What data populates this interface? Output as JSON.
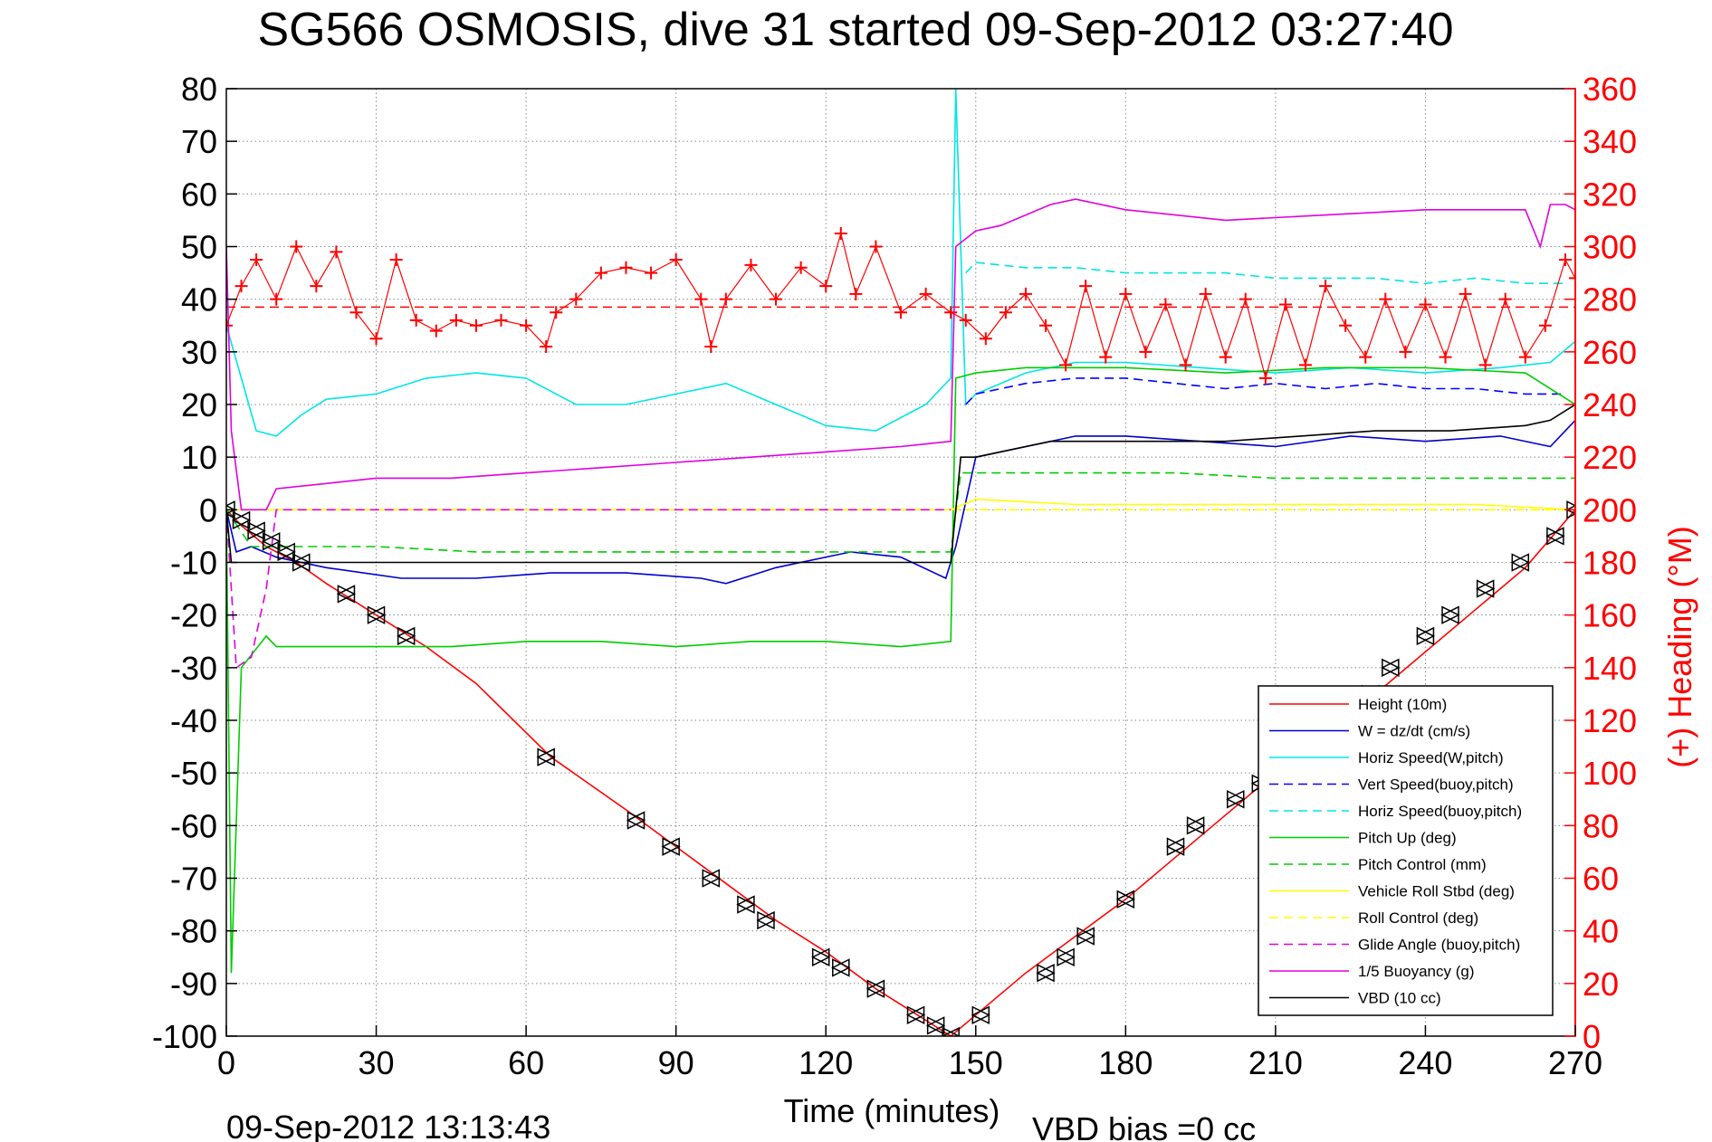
{
  "chart_data": {
    "type": "line",
    "title": "SG566 OSMOSIS, dive 31 started 09-Sep-2012 03:27:40",
    "xlabel": "Time (minutes)",
    "ylabel_right": "(+) Heading (°M)",
    "footer_left": "09-Sep-2012 13:13:43",
    "footer_right": "VBD bias =0 cc",
    "xlim": [
      0,
      270
    ],
    "ylim": [
      -100,
      80
    ],
    "y2lim": [
      0,
      360
    ],
    "grid": true,
    "legend_position": "lower-right",
    "x_ticks": [
      0,
      30,
      60,
      90,
      120,
      150,
      180,
      210,
      240,
      270
    ],
    "y_ticks": [
      80,
      70,
      60,
      50,
      40,
      30,
      20,
      10,
      0,
      -10,
      -20,
      -30,
      -40,
      -50,
      -60,
      -70,
      -80,
      -90,
      -100
    ],
    "y2_ticks": [
      360,
      340,
      320,
      300,
      280,
      260,
      240,
      220,
      200,
      180,
      160,
      140,
      120,
      100,
      80,
      60,
      40,
      20,
      0
    ],
    "colors": {
      "red": "#ff0000",
      "blue": "#0000cc",
      "cyan": "#00e5e5",
      "green": "#00cc00",
      "yellow": "#ffff00",
      "magenta": "#e000e0",
      "black": "#000000"
    },
    "series": [
      {
        "name": "Height (10m)",
        "color": "#ff0000",
        "style": "solid",
        "x": [
          0,
          3,
          8,
          14,
          20,
          30,
          40,
          50,
          65,
          80,
          90,
          100,
          110,
          120,
          130,
          140,
          145,
          150,
          160,
          170,
          180,
          190,
          200,
          210,
          220,
          230,
          240,
          250,
          260,
          270
        ],
        "y": [
          0,
          -3,
          -7,
          -10,
          -14,
          -20,
          -26,
          -33,
          -47,
          -57,
          -64,
          -71,
          -78,
          -84,
          -91,
          -97,
          -100,
          -96,
          -88,
          -81,
          -74,
          -66,
          -58,
          -50,
          -42,
          -35,
          -27,
          -19,
          -11,
          0
        ]
      },
      {
        "name": "W = dz/dt (cm/s)",
        "color": "#0000cc",
        "style": "solid",
        "x": [
          0,
          2,
          5,
          10,
          20,
          35,
          50,
          65,
          80,
          95,
          100,
          110,
          125,
          135,
          144,
          146,
          150,
          160,
          170,
          180,
          195,
          210,
          225,
          240,
          255,
          265,
          270
        ],
        "y": [
          0,
          -8,
          -7,
          -9,
          -11,
          -13,
          -13,
          -12,
          -12,
          -13,
          -14,
          -11,
          -8,
          -9,
          -13,
          -7,
          10,
          12,
          14,
          14,
          13,
          12,
          14,
          13,
          14,
          12,
          17
        ]
      },
      {
        "name": "Horiz Speed(W,pitch)",
        "color": "#00e5e5",
        "style": "solid",
        "x": [
          0,
          3,
          6,
          10,
          15,
          20,
          30,
          40,
          50,
          60,
          70,
          80,
          90,
          100,
          110,
          120,
          130,
          140,
          145,
          146,
          148,
          150,
          160,
          170,
          180,
          195,
          210,
          225,
          240,
          255,
          265,
          270
        ],
        "y": [
          35,
          25,
          15,
          14,
          18,
          21,
          22,
          25,
          26,
          25,
          20,
          20,
          22,
          24,
          20,
          16,
          15,
          20,
          25,
          80,
          20,
          22,
          26,
          28,
          28,
          27,
          26,
          27,
          26,
          27,
          28,
          32
        ]
      },
      {
        "name": "Vert Speed(buoy,pitch)",
        "color": "#0000ff",
        "style": "dashed",
        "x": [
          148,
          150,
          160,
          170,
          180,
          190,
          200,
          210,
          220,
          230,
          240,
          250,
          260,
          268
        ],
        "y": [
          20,
          22,
          24,
          25,
          25,
          24,
          23,
          24,
          23,
          24,
          23,
          23,
          22,
          22
        ]
      },
      {
        "name": "Horiz Speed(buoy,pitch)",
        "color": "#00e5e5",
        "style": "dashed",
        "x": [
          148,
          150,
          160,
          170,
          180,
          190,
          200,
          210,
          220,
          230,
          240,
          250,
          260,
          268
        ],
        "y": [
          45,
          47,
          46,
          46,
          45,
          45,
          45,
          44,
          44,
          44,
          43,
          44,
          43,
          43
        ]
      },
      {
        "name": "Pitch Up (deg)",
        "color": "#00cc00",
        "style": "solid",
        "x": [
          0,
          1,
          3,
          8,
          10,
          15,
          30,
          45,
          60,
          75,
          90,
          105,
          120,
          135,
          145,
          146,
          150,
          160,
          180,
          200,
          220,
          240,
          260,
          270
        ],
        "y": [
          0,
          -88,
          -30,
          -24,
          -26,
          -26,
          -26,
          -26,
          -25,
          -25,
          -26,
          -25,
          -25,
          -26,
          -25,
          25,
          26,
          27,
          27,
          26,
          27,
          27,
          26,
          20
        ]
      },
      {
        "name": "Pitch Control (mm)",
        "color": "#00cc00",
        "style": "dashed",
        "x": [
          0,
          5,
          15,
          30,
          50,
          70,
          90,
          110,
          130,
          145,
          147,
          150,
          170,
          190,
          210,
          230,
          250,
          270
        ],
        "y": [
          0,
          -7,
          -7,
          -7,
          -8,
          -8,
          -8,
          -8,
          -8,
          -8,
          7,
          7,
          7,
          7,
          6,
          6,
          6,
          6
        ]
      },
      {
        "name": "Vehicle Roll Stbd (deg)",
        "color": "#ffff00",
        "style": "solid",
        "x": [
          0,
          5,
          10,
          30,
          60,
          90,
          120,
          140,
          145,
          150,
          170,
          190,
          210,
          230,
          250,
          270
        ],
        "y": [
          0,
          0,
          0,
          0,
          0,
          0,
          0,
          0,
          0,
          2,
          1,
          1,
          1,
          1,
          1,
          0
        ]
      },
      {
        "name": "Roll Control (deg)",
        "color": "#ffff00",
        "style": "dashed",
        "x": [
          0,
          30,
          60,
          90,
          120,
          145,
          150,
          180,
          210,
          240,
          270
        ],
        "y": [
          0,
          0,
          0,
          0,
          0,
          0,
          0,
          0,
          0,
          0,
          0
        ]
      },
      {
        "name": "Glide Angle (buoy,pitch)",
        "color": "#e000e0",
        "style": "dashed",
        "x": [
          0,
          2,
          5,
          8,
          10,
          30,
          60,
          90,
          120,
          145
        ],
        "y": [
          0,
          -30,
          -28,
          -15,
          0,
          0,
          0,
          0,
          0,
          0
        ]
      },
      {
        "name": "1/5 Buoyancy (g)",
        "color": "#e000e0",
        "style": "solid",
        "x": [
          0,
          1,
          3,
          8,
          10,
          20,
          30,
          45,
          60,
          75,
          90,
          105,
          120,
          135,
          145,
          146,
          150,
          155,
          165,
          170,
          180,
          200,
          220,
          240,
          260,
          263,
          265,
          268,
          270
        ],
        "y": [
          50,
          15,
          0,
          0,
          4,
          5,
          6,
          6,
          7,
          8,
          9,
          10,
          11,
          12,
          13,
          50,
          53,
          54,
          58,
          59,
          57,
          55,
          56,
          57,
          57,
          50,
          58,
          58,
          57
        ]
      },
      {
        "name": "VBD (10 cc)",
        "color": "#000000",
        "style": "solid",
        "x": [
          0,
          1,
          20,
          60,
          100,
          145,
          147,
          150,
          165,
          180,
          185,
          200,
          215,
          230,
          245,
          260,
          265,
          270
        ],
        "y": [
          0,
          -10,
          -10,
          -10,
          -10,
          -10,
          10,
          10,
          13,
          13,
          13,
          13,
          14,
          15,
          15,
          16,
          17,
          20
        ]
      }
    ],
    "heading_series": {
      "name": "(+) Heading (°M)",
      "color": "#ff0000",
      "axis": "right",
      "marker": "+",
      "x": [
        0,
        3,
        6,
        10,
        14,
        18,
        22,
        26,
        30,
        34,
        38,
        42,
        46,
        50,
        55,
        60,
        64,
        66,
        70,
        75,
        80,
        85,
        90,
        95,
        97,
        100,
        105,
        110,
        115,
        120,
        123,
        126,
        130,
        135,
        140,
        145,
        148,
        152,
        156,
        160,
        164,
        168,
        172,
        176,
        180,
        184,
        188,
        192,
        196,
        200,
        204,
        208,
        212,
        216,
        220,
        224,
        228,
        232,
        236,
        240,
        244,
        248,
        252,
        256,
        260,
        264,
        268,
        270
      ],
      "y": [
        270,
        285,
        295,
        280,
        300,
        285,
        298,
        275,
        265,
        295,
        272,
        268,
        272,
        270,
        272,
        270,
        262,
        275,
        280,
        290,
        292,
        290,
        295,
        280,
        262,
        280,
        293,
        280,
        292,
        285,
        305,
        282,
        300,
        275,
        282,
        275,
        272,
        265,
        275,
        282,
        270,
        255,
        285,
        258,
        282,
        260,
        278,
        255,
        282,
        258,
        280,
        250,
        278,
        255,
        285,
        270,
        258,
        280,
        260,
        278,
        258,
        282,
        255,
        280,
        258,
        270,
        295,
        288
      ]
    },
    "heading_ref": {
      "color": "#ff0000",
      "style": "dashed",
      "value": 277
    },
    "markers": {
      "type": "triangle-pair",
      "color": "#000000",
      "x": [
        0,
        3,
        6,
        9,
        12,
        15,
        24,
        30,
        36,
        64,
        82,
        89,
        97,
        104,
        108,
        119,
        123,
        130,
        138,
        142,
        145,
        151,
        164,
        168,
        172,
        180,
        190,
        194,
        202,
        207,
        229,
        233,
        240,
        245,
        252,
        259,
        266,
        270
      ],
      "y": [
        0,
        -2,
        -4,
        -6,
        -8,
        -10,
        -16,
        -20,
        -24,
        -47,
        -59,
        -64,
        -70,
        -75,
        -78,
        -85,
        -87,
        -91,
        -96,
        -98,
        -100,
        -96,
        -88,
        -85,
        -81,
        -74,
        -64,
        -60,
        -55,
        -52,
        -35,
        -30,
        -24,
        -20,
        -15,
        -10,
        -5,
        0
      ]
    }
  }
}
